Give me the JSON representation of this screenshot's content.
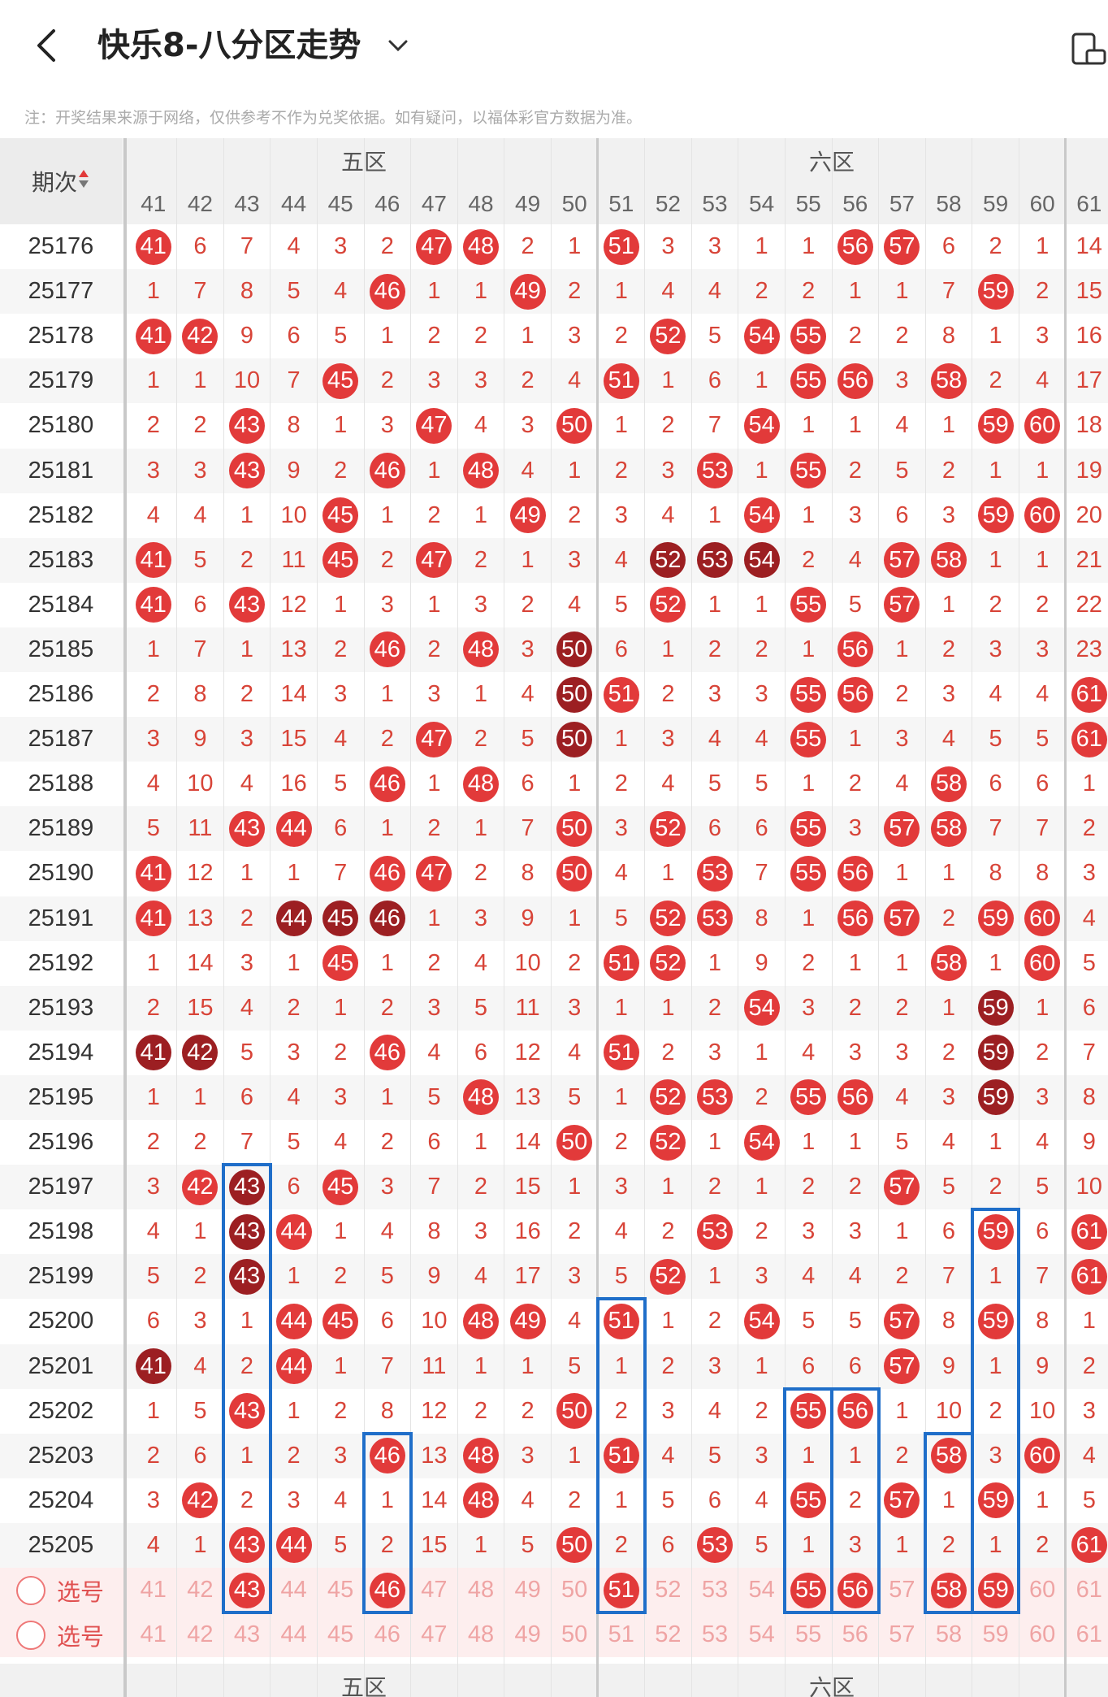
{
  "header": {
    "title": "快乐8-八分区走势",
    "note": "注：开奖结果来源于网络，仅供参考不作为兑奖依据。如有疑问，以福体彩官方数据为准。",
    "period_label": "期次",
    "sort_icon": "sort-arrows-icon"
  },
  "zones": [
    {
      "name": "五区",
      "columns": [
        "41",
        "42",
        "43",
        "44",
        "45",
        "46",
        "47",
        "48",
        "49",
        "50"
      ]
    },
    {
      "name": "六区",
      "columns": [
        "51",
        "52",
        "53",
        "54",
        "55",
        "56",
        "57",
        "58",
        "59",
        "60"
      ]
    },
    {
      "name": "",
      "columns": [
        "61"
      ]
    }
  ],
  "columns": [
    "41",
    "42",
    "43",
    "44",
    "45",
    "46",
    "47",
    "48",
    "49",
    "50",
    "51",
    "52",
    "53",
    "54",
    "55",
    "56",
    "57",
    "58",
    "59",
    "60",
    "61"
  ],
  "rows": [
    {
      "period": "25176",
      "cells": [
        "41",
        "6",
        "7",
        "4",
        "3",
        "2",
        "47",
        "48",
        "2",
        "1",
        "51",
        "3",
        "3",
        "1",
        "1",
        "56",
        "57",
        "6",
        "2",
        "1",
        "14"
      ],
      "balls": [
        0,
        6,
        7,
        10,
        15,
        16
      ],
      "dark": []
    },
    {
      "period": "25177",
      "cells": [
        "1",
        "7",
        "8",
        "5",
        "4",
        "46",
        "1",
        "1",
        "49",
        "2",
        "1",
        "4",
        "4",
        "2",
        "2",
        "1",
        "1",
        "7",
        "59",
        "2",
        "15"
      ],
      "balls": [
        5,
        8,
        18
      ],
      "dark": []
    },
    {
      "period": "25178",
      "cells": [
        "41",
        "42",
        "9",
        "6",
        "5",
        "1",
        "2",
        "2",
        "1",
        "3",
        "2",
        "52",
        "5",
        "54",
        "55",
        "2",
        "2",
        "8",
        "1",
        "3",
        "16"
      ],
      "balls": [
        0,
        1,
        11,
        13,
        14
      ],
      "dark": []
    },
    {
      "period": "25179",
      "cells": [
        "1",
        "1",
        "10",
        "7",
        "45",
        "2",
        "3",
        "3",
        "2",
        "4",
        "51",
        "1",
        "6",
        "1",
        "55",
        "56",
        "3",
        "58",
        "2",
        "4",
        "17"
      ],
      "balls": [
        4,
        10,
        14,
        15,
        17
      ],
      "dark": []
    },
    {
      "period": "25180",
      "cells": [
        "2",
        "2",
        "43",
        "8",
        "1",
        "3",
        "47",
        "4",
        "3",
        "50",
        "1",
        "2",
        "7",
        "54",
        "1",
        "1",
        "4",
        "1",
        "59",
        "60",
        "18"
      ],
      "balls": [
        2,
        6,
        9,
        13,
        18,
        19
      ],
      "dark": []
    },
    {
      "period": "25181",
      "cells": [
        "3",
        "3",
        "43",
        "9",
        "2",
        "46",
        "1",
        "48",
        "4",
        "1",
        "2",
        "3",
        "53",
        "1",
        "55",
        "2",
        "5",
        "2",
        "1",
        "1",
        "19"
      ],
      "balls": [
        2,
        5,
        7,
        12,
        14
      ],
      "dark": []
    },
    {
      "period": "25182",
      "cells": [
        "4",
        "4",
        "1",
        "10",
        "45",
        "1",
        "2",
        "1",
        "49",
        "2",
        "3",
        "4",
        "1",
        "54",
        "1",
        "3",
        "6",
        "3",
        "59",
        "60",
        "20"
      ],
      "balls": [
        4,
        8,
        13,
        18,
        19
      ],
      "dark": []
    },
    {
      "period": "25183",
      "cells": [
        "41",
        "5",
        "2",
        "11",
        "45",
        "2",
        "47",
        "2",
        "1",
        "3",
        "4",
        "52",
        "53",
        "54",
        "2",
        "4",
        "57",
        "58",
        "1",
        "1",
        "21"
      ],
      "balls": [
        0,
        4,
        6,
        11,
        12,
        13,
        16,
        17
      ],
      "dark": [
        11,
        12,
        13
      ]
    },
    {
      "period": "25184",
      "cells": [
        "41",
        "6",
        "43",
        "12",
        "1",
        "3",
        "1",
        "3",
        "2",
        "4",
        "5",
        "52",
        "1",
        "1",
        "55",
        "5",
        "57",
        "1",
        "2",
        "2",
        "22"
      ],
      "balls": [
        0,
        2,
        11,
        14,
        16
      ],
      "dark": []
    },
    {
      "period": "25185",
      "cells": [
        "1",
        "7",
        "1",
        "13",
        "2",
        "46",
        "2",
        "48",
        "3",
        "50",
        "6",
        "1",
        "2",
        "2",
        "1",
        "56",
        "1",
        "2",
        "3",
        "3",
        "23"
      ],
      "balls": [
        5,
        7,
        9,
        15
      ],
      "dark": [
        9
      ]
    },
    {
      "period": "25186",
      "cells": [
        "2",
        "8",
        "2",
        "14",
        "3",
        "1",
        "3",
        "1",
        "4",
        "50",
        "51",
        "2",
        "3",
        "3",
        "55",
        "56",
        "2",
        "3",
        "4",
        "4",
        "61"
      ],
      "balls": [
        9,
        10,
        14,
        15,
        20
      ],
      "dark": [
        9
      ]
    },
    {
      "period": "25187",
      "cells": [
        "3",
        "9",
        "3",
        "15",
        "4",
        "2",
        "47",
        "2",
        "5",
        "50",
        "1",
        "3",
        "4",
        "4",
        "55",
        "1",
        "3",
        "4",
        "5",
        "5",
        "61"
      ],
      "balls": [
        6,
        9,
        14,
        20
      ],
      "dark": [
        9
      ]
    },
    {
      "period": "25188",
      "cells": [
        "4",
        "10",
        "4",
        "16",
        "5",
        "46",
        "1",
        "48",
        "6",
        "1",
        "2",
        "4",
        "5",
        "5",
        "1",
        "2",
        "4",
        "58",
        "6",
        "6",
        "1"
      ],
      "balls": [
        5,
        7,
        17
      ],
      "dark": []
    },
    {
      "period": "25189",
      "cells": [
        "5",
        "11",
        "43",
        "44",
        "6",
        "1",
        "2",
        "1",
        "7",
        "50",
        "3",
        "52",
        "6",
        "6",
        "55",
        "3",
        "57",
        "58",
        "7",
        "7",
        "2"
      ],
      "balls": [
        2,
        3,
        9,
        11,
        14,
        16,
        17
      ],
      "dark": []
    },
    {
      "period": "25190",
      "cells": [
        "41",
        "12",
        "1",
        "1",
        "7",
        "46",
        "47",
        "2",
        "8",
        "50",
        "4",
        "1",
        "53",
        "7",
        "55",
        "56",
        "1",
        "1",
        "8",
        "8",
        "3"
      ],
      "balls": [
        0,
        5,
        6,
        9,
        12,
        14,
        15
      ],
      "dark": []
    },
    {
      "period": "25191",
      "cells": [
        "41",
        "13",
        "2",
        "44",
        "45",
        "46",
        "1",
        "3",
        "9",
        "1",
        "5",
        "52",
        "53",
        "8",
        "1",
        "56",
        "57",
        "2",
        "59",
        "60",
        "4"
      ],
      "balls": [
        0,
        3,
        4,
        5,
        11,
        12,
        15,
        16,
        18,
        19
      ],
      "dark": [
        3,
        4,
        5
      ]
    },
    {
      "period": "25192",
      "cells": [
        "1",
        "14",
        "3",
        "1",
        "45",
        "1",
        "2",
        "4",
        "10",
        "2",
        "51",
        "52",
        "1",
        "9",
        "2",
        "1",
        "1",
        "58",
        "1",
        "60",
        "5"
      ],
      "balls": [
        4,
        10,
        11,
        17,
        19
      ],
      "dark": []
    },
    {
      "period": "25193",
      "cells": [
        "2",
        "15",
        "4",
        "2",
        "1",
        "2",
        "3",
        "5",
        "11",
        "3",
        "1",
        "1",
        "2",
        "54",
        "3",
        "2",
        "2",
        "1",
        "59",
        "1",
        "6"
      ],
      "balls": [
        13,
        18
      ],
      "dark": [
        18
      ]
    },
    {
      "period": "25194",
      "cells": [
        "41",
        "42",
        "5",
        "3",
        "2",
        "46",
        "4",
        "6",
        "12",
        "4",
        "51",
        "2",
        "3",
        "1",
        "4",
        "3",
        "3",
        "2",
        "59",
        "2",
        "7"
      ],
      "balls": [
        0,
        1,
        5,
        10,
        18
      ],
      "dark": [
        0,
        1,
        18
      ]
    },
    {
      "period": "25195",
      "cells": [
        "1",
        "1",
        "6",
        "4",
        "3",
        "1",
        "5",
        "48",
        "13",
        "5",
        "1",
        "52",
        "53",
        "2",
        "55",
        "56",
        "4",
        "3",
        "59",
        "3",
        "8"
      ],
      "balls": [
        7,
        11,
        12,
        14,
        15,
        18
      ],
      "dark": [
        18
      ]
    },
    {
      "period": "25196",
      "cells": [
        "2",
        "2",
        "7",
        "5",
        "4",
        "2",
        "6",
        "1",
        "14",
        "50",
        "2",
        "52",
        "1",
        "54",
        "1",
        "1",
        "5",
        "4",
        "1",
        "4",
        "9"
      ],
      "balls": [
        9,
        11,
        13
      ],
      "dark": []
    },
    {
      "period": "25197",
      "cells": [
        "3",
        "42",
        "43",
        "6",
        "45",
        "3",
        "7",
        "2",
        "15",
        "1",
        "3",
        "1",
        "2",
        "1",
        "2",
        "2",
        "57",
        "5",
        "2",
        "5",
        "10"
      ],
      "balls": [
        1,
        2,
        4,
        16
      ],
      "dark": [
        2
      ]
    },
    {
      "period": "25198",
      "cells": [
        "4",
        "1",
        "43",
        "44",
        "1",
        "4",
        "8",
        "3",
        "16",
        "2",
        "4",
        "2",
        "53",
        "2",
        "3",
        "3",
        "1",
        "6",
        "59",
        "6",
        "61"
      ],
      "balls": [
        2,
        3,
        12,
        18,
        20
      ],
      "dark": [
        2
      ]
    },
    {
      "period": "25199",
      "cells": [
        "5",
        "2",
        "43",
        "1",
        "2",
        "5",
        "9",
        "4",
        "17",
        "3",
        "5",
        "52",
        "1",
        "3",
        "4",
        "4",
        "2",
        "7",
        "1",
        "7",
        "61"
      ],
      "balls": [
        2,
        11,
        20
      ],
      "dark": [
        2
      ]
    },
    {
      "period": "25200",
      "cells": [
        "6",
        "3",
        "1",
        "44",
        "45",
        "6",
        "10",
        "48",
        "49",
        "4",
        "51",
        "1",
        "2",
        "54",
        "5",
        "5",
        "57",
        "8",
        "59",
        "8",
        "1"
      ],
      "balls": [
        3,
        4,
        7,
        8,
        10,
        13,
        16,
        18
      ],
      "dark": []
    },
    {
      "period": "25201",
      "cells": [
        "41",
        "4",
        "2",
        "44",
        "1",
        "7",
        "11",
        "1",
        "1",
        "5",
        "1",
        "2",
        "3",
        "1",
        "6",
        "6",
        "57",
        "9",
        "1",
        "9",
        "2"
      ],
      "balls": [
        0,
        3,
        16
      ],
      "dark": [
        0
      ]
    },
    {
      "period": "25202",
      "cells": [
        "1",
        "5",
        "43",
        "1",
        "2",
        "8",
        "12",
        "2",
        "2",
        "50",
        "2",
        "3",
        "4",
        "2",
        "55",
        "56",
        "1",
        "10",
        "2",
        "10",
        "3"
      ],
      "balls": [
        2,
        9,
        14,
        15
      ],
      "dark": []
    },
    {
      "period": "25203",
      "cells": [
        "2",
        "6",
        "1",
        "2",
        "3",
        "46",
        "13",
        "48",
        "3",
        "1",
        "51",
        "4",
        "5",
        "3",
        "1",
        "1",
        "2",
        "58",
        "3",
        "60",
        "4"
      ],
      "balls": [
        5,
        7,
        10,
        17,
        19
      ],
      "dark": []
    },
    {
      "period": "25204",
      "cells": [
        "3",
        "42",
        "2",
        "3",
        "4",
        "1",
        "14",
        "48",
        "4",
        "2",
        "1",
        "5",
        "6",
        "4",
        "55",
        "2",
        "57",
        "1",
        "59",
        "1",
        "5"
      ],
      "balls": [
        1,
        7,
        14,
        16,
        18
      ],
      "dark": []
    },
    {
      "period": "25205",
      "cells": [
        "4",
        "1",
        "43",
        "44",
        "5",
        "2",
        "15",
        "1",
        "5",
        "50",
        "2",
        "6",
        "53",
        "5",
        "1",
        "3",
        "1",
        "2",
        "1",
        "2",
        "61"
      ],
      "balls": [
        2,
        3,
        9,
        12,
        20
      ],
      "dark": []
    }
  ],
  "select_rows": [
    {
      "label": "选号",
      "selected": [
        2,
        5,
        10,
        14,
        15,
        17,
        18
      ]
    },
    {
      "label": "选号",
      "selected": []
    }
  ],
  "colors": {
    "accent_red": "#e23a3a",
    "dark_red": "#9c1f22",
    "highlight_blue": "#1f6ec9",
    "row_alt": "#f6f6f6"
  }
}
